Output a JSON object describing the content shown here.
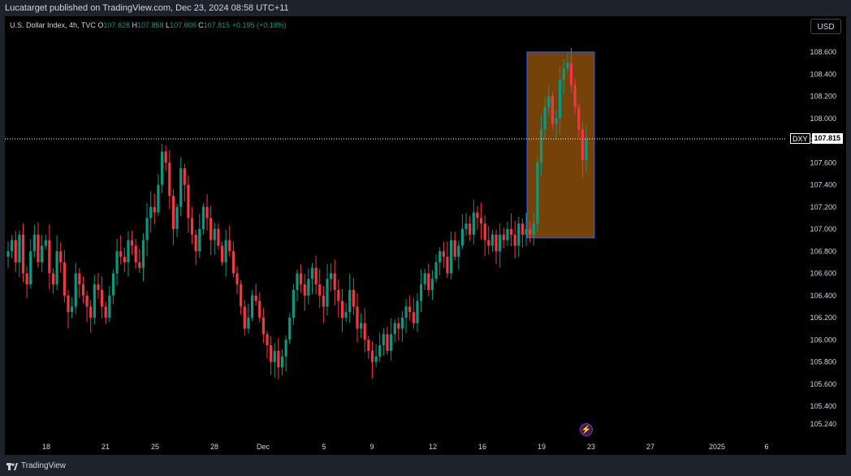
{
  "header": {
    "published": "Lucatarget published on TradingView.com, Dec 23, 2024 08:58 UTC+11"
  },
  "legend": {
    "name": "U.S. Dollar Index, 4h, TVC",
    "o_label": "O",
    "o": "107.626",
    "h_label": "H",
    "h": "107.858",
    "l_label": "L",
    "l": "107.606",
    "c_label": "C",
    "c": "107.815",
    "change": "+0.195 (+0.18%)"
  },
  "currency_button": "USD",
  "price_tag": {
    "symbol": "DXY",
    "value": "107.815"
  },
  "footer": {
    "brand": "TradingView"
  },
  "colors": {
    "up": "#089981",
    "down": "#f23645",
    "box_fill": "#8a4f0a",
    "box_border": "#2962ff",
    "background": "#000000"
  },
  "icons": {
    "alert": "lightning-bolt-icon",
    "logo": "tradingview-logo-icon"
  },
  "chart_data": {
    "type": "candlestick",
    "ylim": [
      105.2,
      108.75
    ],
    "y_ticks": [
      "108.600",
      "108.400",
      "108.200",
      "108.000",
      "107.800",
      "107.600",
      "107.400",
      "107.200",
      "107.000",
      "106.800",
      "106.600",
      "106.400",
      "106.200",
      "106.000",
      "105.800",
      "105.600",
      "105.400",
      "105.240"
    ],
    "x_ticks": [
      "18",
      "21",
      "25",
      "28",
      "Dec",
      "5",
      "9",
      "12",
      "16",
      "19",
      "23",
      "27",
      "2025",
      "6"
    ],
    "last_price": 107.815,
    "highlight_box": {
      "price_low": 106.92,
      "price_high": 108.6,
      "start": "Dec 18",
      "end": "Dec 23"
    },
    "price_path": [
      106.8,
      106.9,
      106.7,
      106.95,
      106.6,
      106.5,
      106.8,
      106.95,
      106.7,
      106.85,
      106.9,
      106.6,
      106.5,
      106.8,
      106.7,
      106.4,
      106.25,
      106.3,
      106.6,
      106.5,
      106.4,
      106.3,
      106.2,
      106.5,
      106.45,
      106.3,
      106.2,
      106.4,
      106.6,
      106.8,
      106.75,
      106.7,
      106.9,
      106.85,
      106.7,
      106.65,
      106.9,
      107.1,
      107.2,
      107.15,
      107.4,
      107.7,
      107.6,
      107.3,
      107.0,
      107.2,
      107.55,
      107.4,
      107.1,
      106.95,
      106.8,
      107.0,
      107.2,
      107.1,
      106.9,
      107.0,
      106.85,
      106.7,
      106.9,
      106.8,
      106.6,
      106.5,
      106.3,
      106.1,
      106.2,
      106.4,
      106.35,
      106.2,
      106.05,
      105.95,
      105.8,
      105.9,
      105.75,
      105.85,
      106.0,
      106.2,
      106.45,
      106.6,
      106.5,
      106.4,
      106.55,
      106.65,
      106.5,
      106.4,
      106.3,
      106.55,
      106.6,
      106.45,
      106.35,
      106.2,
      106.25,
      106.45,
      106.3,
      106.1,
      106.15,
      106.0,
      105.9,
      105.8,
      105.85,
      105.95,
      106.05,
      105.9,
      106.05,
      106.15,
      106.1,
      106.2,
      106.3,
      106.25,
      106.15,
      106.35,
      106.5,
      106.6,
      106.45,
      106.55,
      106.7,
      106.8,
      106.75,
      106.6,
      106.9,
      106.75,
      106.85,
      107.0,
      107.05,
      106.95,
      107.15,
      107.1,
      107.05,
      106.9,
      106.85,
      106.95,
      106.8,
      106.95,
      106.9,
      107.0,
      106.95,
      106.85,
      107.05,
      106.95,
      107.0,
      106.95,
      107.05,
      107.6,
      107.9,
      108.1,
      108.2,
      107.95,
      108.0,
      108.35,
      108.45,
      108.5,
      108.3,
      108.1,
      107.9,
      107.62,
      107.815
    ]
  }
}
